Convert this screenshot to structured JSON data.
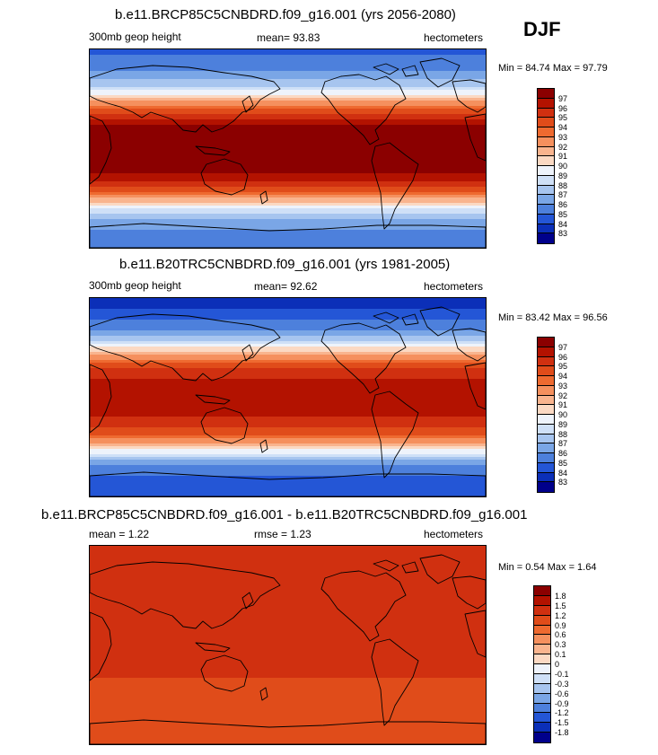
{
  "season": "DJF",
  "chart_data": [
    {
      "type": "heatmap",
      "title": "b.e11.BRCP85C5CNBDRD.f09_g16.001 (yrs 2056-2080)",
      "variable": "300mb geop height",
      "mean_text": "mean=  93.83",
      "units": "hectometers",
      "min_max_text": "Min =  84.74 Max =  97.79",
      "min": 84.74,
      "max": 97.79,
      "colorbar_labels": [
        "97",
        "96",
        "95",
        "94",
        "93",
        "92",
        "91",
        "90",
        "89",
        "88",
        "87",
        "86",
        "85",
        "84",
        "83"
      ],
      "colors": [
        "#8b0000",
        "#b31200",
        "#d03010",
        "#e04c1a",
        "#ee6a30",
        "#f5905e",
        "#f9b48e",
        "#fbd9c3",
        "#eef3fb",
        "#cfe0f7",
        "#a7c5ef",
        "#7aa6e6",
        "#4d80dc",
        "#2456d6",
        "#0b2fb8",
        "#00008b"
      ],
      "lat_profile": [
        {
          "lat": 90,
          "value": 84.8
        },
        {
          "lat": 75,
          "value": 85.5
        },
        {
          "lat": 60,
          "value": 87.3
        },
        {
          "lat": 50,
          "value": 89.5
        },
        {
          "lat": 40,
          "value": 92.8
        },
        {
          "lat": 30,
          "value": 95.4
        },
        {
          "lat": 20,
          "value": 97.2
        },
        {
          "lat": 0,
          "value": 97.7
        },
        {
          "lat": -15,
          "value": 97.5
        },
        {
          "lat": -25,
          "value": 96.8
        },
        {
          "lat": -35,
          "value": 95.0
        },
        {
          "lat": -45,
          "value": 92.0
        },
        {
          "lat": -55,
          "value": 88.8
        },
        {
          "lat": -65,
          "value": 86.5
        },
        {
          "lat": -90,
          "value": 85.2
        }
      ]
    },
    {
      "type": "heatmap",
      "title": "b.e11.B20TRC5CNBDRD.f09_g16.001 (yrs 1981-2005)",
      "variable": "300mb geop height",
      "mean_text": "mean=  92.62",
      "units": "hectometers",
      "min_max_text": "Min =  83.42 Max =  96.56",
      "min": 83.42,
      "max": 96.56,
      "colorbar_labels": [
        "97",
        "96",
        "95",
        "94",
        "93",
        "92",
        "91",
        "90",
        "89",
        "88",
        "87",
        "86",
        "85",
        "84",
        "83"
      ],
      "colors": [
        "#8b0000",
        "#b31200",
        "#d03010",
        "#e04c1a",
        "#ee6a30",
        "#f5905e",
        "#f9b48e",
        "#fbd9c3",
        "#eef3fb",
        "#cfe0f7",
        "#a7c5ef",
        "#7aa6e6",
        "#4d80dc",
        "#2456d6",
        "#0b2fb8",
        "#00008b"
      ],
      "lat_profile": [
        {
          "lat": 90,
          "value": 83.5
        },
        {
          "lat": 75,
          "value": 84.3
        },
        {
          "lat": 60,
          "value": 86.2
        },
        {
          "lat": 50,
          "value": 88.3
        },
        {
          "lat": 40,
          "value": 91.6
        },
        {
          "lat": 30,
          "value": 94.2
        },
        {
          "lat": 20,
          "value": 95.9
        },
        {
          "lat": 0,
          "value": 96.4
        },
        {
          "lat": -15,
          "value": 96.2
        },
        {
          "lat": -25,
          "value": 95.5
        },
        {
          "lat": -35,
          "value": 93.8
        },
        {
          "lat": -45,
          "value": 90.8
        },
        {
          "lat": -55,
          "value": 87.6
        },
        {
          "lat": -65,
          "value": 85.3
        },
        {
          "lat": -90,
          "value": 84.0
        }
      ]
    },
    {
      "type": "heatmap",
      "title": "b.e11.BRCP85C5CNBDRD.f09_g16.001 - b.e11.B20TRC5CNBDRD.f09_g16.001",
      "mean_text": "mean =   1.22",
      "rmse_text": "rmse =   1.23",
      "units": "hectometers",
      "min_max_text": "Min =   0.54 Max =   1.64",
      "min": 0.54,
      "max": 1.64,
      "colorbar_labels": [
        "1.8",
        "1.5",
        "1.2",
        "0.9",
        "0.6",
        "0.3",
        "0.1",
        "0",
        "-0.1",
        "-0.3",
        "-0.6",
        "-0.9",
        "-1.2",
        "-1.5",
        "-1.8"
      ],
      "colors": [
        "#8b0000",
        "#b31200",
        "#d03010",
        "#e04c1a",
        "#ee6a30",
        "#f5905e",
        "#f9b48e",
        "#fbd9c3",
        "#eef3fb",
        "#cfe0f7",
        "#a7c5ef",
        "#7aa6e6",
        "#4d80dc",
        "#2456d6",
        "#0b2fb8",
        "#00008b"
      ],
      "lat_profile": [
        {
          "lat": 90,
          "value": 1.35
        },
        {
          "lat": 60,
          "value": 1.25
        },
        {
          "lat": 40,
          "value": 1.2
        },
        {
          "lat": 20,
          "value": 1.3
        },
        {
          "lat": 0,
          "value": 1.3
        },
        {
          "lat": -20,
          "value": 1.25
        },
        {
          "lat": -40,
          "value": 1.15
        },
        {
          "lat": -55,
          "value": 1.05
        },
        {
          "lat": -70,
          "value": 0.9
        },
        {
          "lat": -90,
          "value": 1.2
        }
      ]
    }
  ]
}
